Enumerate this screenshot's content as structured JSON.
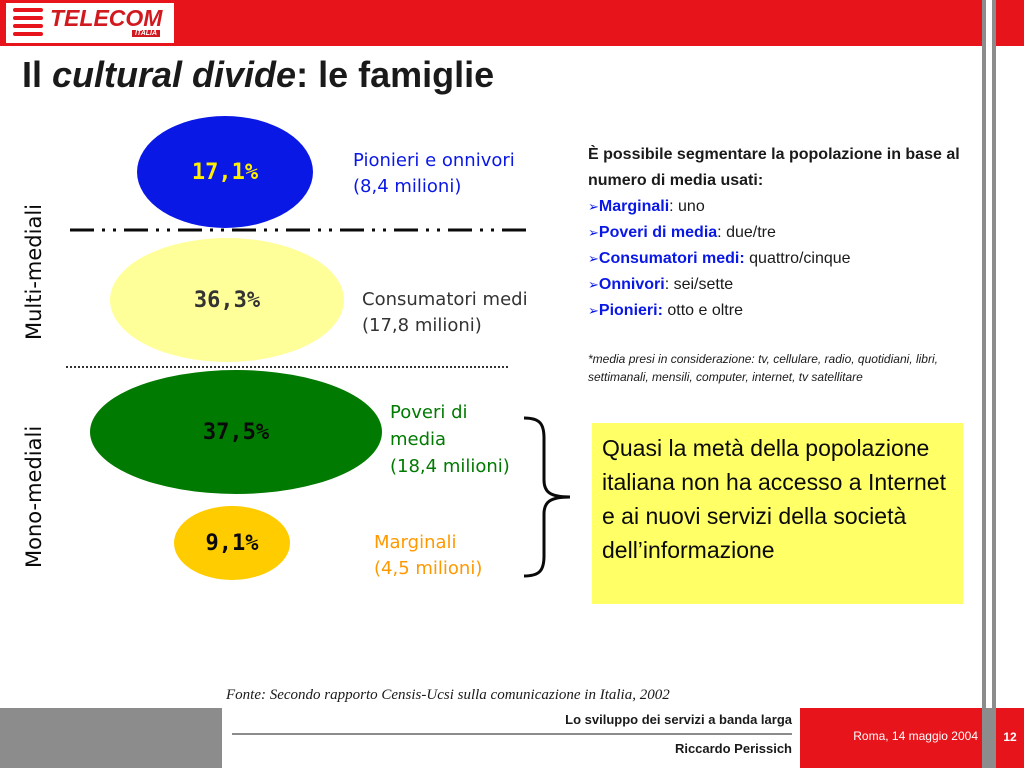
{
  "header": {
    "brand": "TELECOM",
    "brand_sub": "ITALIA",
    "title_prefix": "Il ",
    "title_italic": "cultural divide",
    "title_suffix": ": le famiglie"
  },
  "segments": [
    {
      "name": "Pionieri",
      "percent": "17,1%",
      "label_line1": "Pionieri e onnivori",
      "label_line2": "(8,4 milioni)",
      "color": "#0a18e6"
    },
    {
      "name": "Consumatori",
      "percent": "36,3%",
      "label_line1": "Consumatori medi",
      "label_line2": "(17,8 milioni)",
      "color": "#ffff99"
    },
    {
      "name": "Poveri",
      "percent": "37,5%",
      "label_line1": "Poveri di",
      "label_line2": "media",
      "label_line3": "(18,4 milioni)",
      "color": "#007a00"
    },
    {
      "name": "Marginali",
      "percent": "9,1%",
      "label_line1": "Marginali",
      "label_line2": "(4,5 milioni)",
      "color": "#ffcc00"
    }
  ],
  "groups": {
    "multi": "Multi-mediali",
    "mono": "Mono-mediali"
  },
  "info": {
    "intro": "È possibile segmentare la popolazione in base al numero di media usati:",
    "items": [
      {
        "term": "Marginali",
        "sep": ": ",
        "value": "uno"
      },
      {
        "term": "Poveri di media",
        "sep": ": ",
        "value": "due/tre"
      },
      {
        "term": "Consumatori medi:",
        "sep": " ",
        "value": "quattro/cinque"
      },
      {
        "term": "Onnivori",
        "sep": ": ",
        "value": "sei/sette"
      },
      {
        "term": "Pionieri:",
        "sep": " ",
        "value": "otto e oltre"
      }
    ],
    "arrow": "➢",
    "note": "*media presi in considerazione: tv, cellulare, radio, quotidiani, libri, settimanali, mensili, computer, internet, tv satellitare"
  },
  "callout": "Quasi la metà della popolazione italiana non ha accesso a Internet e ai nuovi servizi della società dell’informazione",
  "source": "Fonte: Secondo rapporto Censis-Ucsi sulla comunicazione in Italia, 2002",
  "footer": {
    "topic": "Lo sviluppo dei servizi a banda larga",
    "author": "Riccardo Perissich",
    "date": "Roma, 14 maggio  2004",
    "page": "12"
  },
  "colors": {
    "brand_red": "#e8141b",
    "accent_blue": "#0a18e6",
    "callout_yellow": "#ffff66"
  }
}
